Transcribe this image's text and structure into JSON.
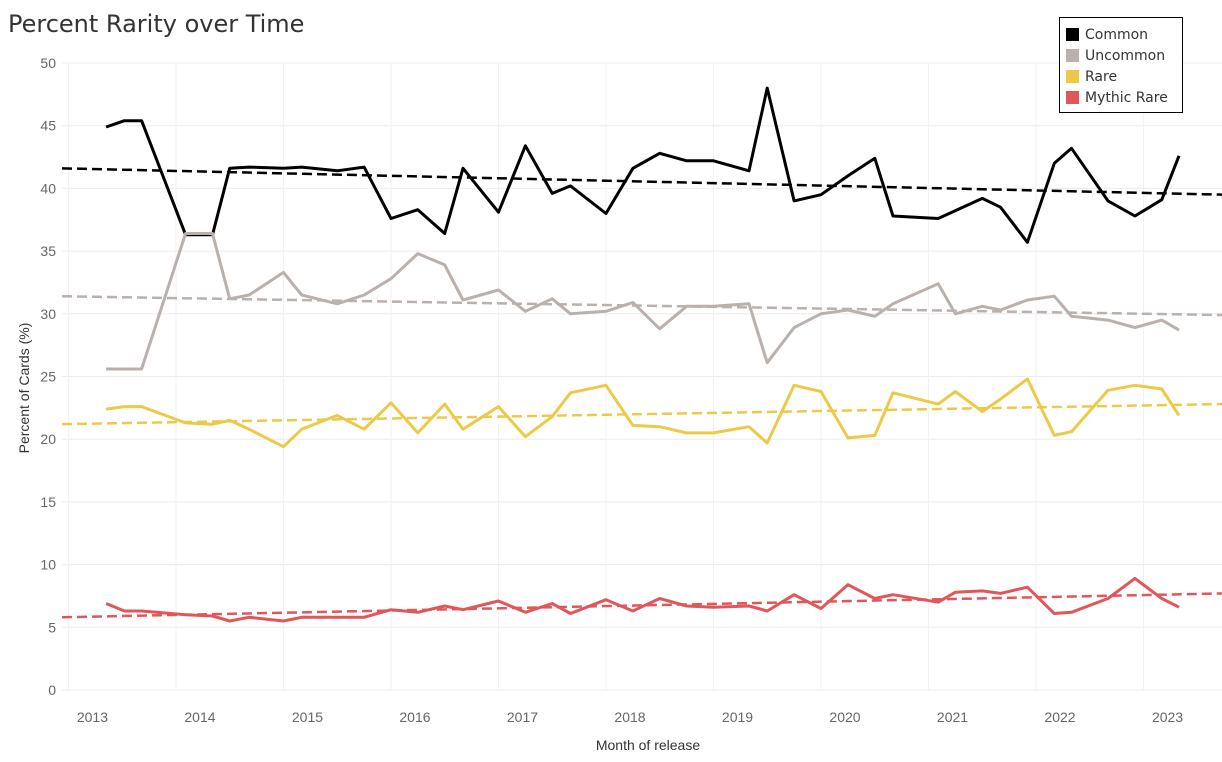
{
  "chart_data": {
    "type": "line",
    "title": "Percent Rarity over Time",
    "xlabel": "Month of release",
    "ylabel": "Percent of Cards (%)",
    "ylim": [
      0,
      50
    ],
    "yticks": [
      0,
      5,
      10,
      15,
      20,
      25,
      30,
      35,
      40,
      45,
      50
    ],
    "xticks": [
      "2013",
      "2014",
      "2015",
      "2016",
      "2017",
      "2018",
      "2019",
      "2020",
      "2021",
      "2022",
      "2023"
    ],
    "xlim": [
      2012.94,
      2023.73
    ],
    "grid": true,
    "legend_position": "top-right",
    "series": [
      {
        "name": "Common",
        "color": "#000000",
        "x": [
          2013.35,
          2013.52,
          2013.68,
          2014.09,
          2014.34,
          2014.5,
          2014.68,
          2015.0,
          2015.17,
          2015.5,
          2015.75,
          2016.0,
          2016.25,
          2016.5,
          2016.67,
          2017.0,
          2017.25,
          2017.5,
          2017.67,
          2018.0,
          2018.25,
          2018.5,
          2018.75,
          2019.0,
          2019.33,
          2019.5,
          2019.75,
          2020.0,
          2020.25,
          2020.5,
          2020.67,
          2021.09,
          2021.5,
          2021.67,
          2021.92,
          2022.17,
          2022.33,
          2022.67,
          2022.92,
          2023.17,
          2023.33
        ],
        "values": [
          44.9,
          45.4,
          45.4,
          36.3,
          36.3,
          41.6,
          41.7,
          41.6,
          41.7,
          41.4,
          41.7,
          37.6,
          38.3,
          36.4,
          41.6,
          38.1,
          43.4,
          39.6,
          40.2,
          38.0,
          41.6,
          42.8,
          42.2,
          42.2,
          41.4,
          48.0,
          39.0,
          39.5,
          41.0,
          42.4,
          37.8,
          37.6,
          39.2,
          38.5,
          35.7,
          42.0,
          43.2,
          39.0,
          37.8,
          39.1,
          42.6
        ],
        "trend": [
          41.6,
          39.5
        ]
      },
      {
        "name": "Uncommon",
        "color": "#bab0ac",
        "x": [
          2013.35,
          2013.52,
          2013.68,
          2014.09,
          2014.34,
          2014.5,
          2014.68,
          2015.0,
          2015.17,
          2015.5,
          2015.75,
          2016.0,
          2016.25,
          2016.5,
          2016.67,
          2017.0,
          2017.25,
          2017.5,
          2017.67,
          2018.0,
          2018.25,
          2018.5,
          2018.75,
          2019.0,
          2019.33,
          2019.5,
          2019.75,
          2020.0,
          2020.25,
          2020.5,
          2020.67,
          2021.09,
          2021.25,
          2021.5,
          2021.67,
          2021.92,
          2022.17,
          2022.33,
          2022.67,
          2022.92,
          2023.17,
          2023.33
        ],
        "values": [
          25.6,
          25.6,
          25.6,
          36.4,
          36.4,
          31.2,
          31.5,
          33.3,
          31.5,
          30.8,
          31.5,
          32.8,
          34.8,
          33.9,
          31.1,
          31.9,
          30.2,
          31.2,
          30.0,
          30.2,
          30.9,
          28.8,
          30.6,
          30.6,
          30.8,
          26.1,
          28.9,
          30.0,
          30.3,
          29.8,
          30.8,
          32.4,
          30.0,
          30.6,
          30.3,
          31.1,
          31.4,
          29.8,
          29.5,
          28.9,
          29.5,
          28.7
        ],
        "trend": [
          31.4,
          29.9
        ]
      },
      {
        "name": "Rare",
        "color": "#edc948",
        "x": [
          2013.35,
          2013.52,
          2013.68,
          2014.09,
          2014.34,
          2014.5,
          2014.68,
          2015.0,
          2015.17,
          2015.5,
          2015.75,
          2016.0,
          2016.25,
          2016.5,
          2016.67,
          2017.0,
          2017.25,
          2017.5,
          2017.67,
          2018.0,
          2018.25,
          2018.5,
          2018.75,
          2019.0,
          2019.33,
          2019.5,
          2019.75,
          2020.0,
          2020.25,
          2020.5,
          2020.67,
          2021.09,
          2021.25,
          2021.5,
          2021.67,
          2021.92,
          2022.17,
          2022.33,
          2022.67,
          2022.92,
          2023.17,
          2023.33
        ],
        "values": [
          22.4,
          22.6,
          22.6,
          21.3,
          21.2,
          21.5,
          20.8,
          19.4,
          20.8,
          21.9,
          20.8,
          22.9,
          20.5,
          22.8,
          20.8,
          22.6,
          20.2,
          21.8,
          23.7,
          24.3,
          21.1,
          21.0,
          20.5,
          20.5,
          21.0,
          19.7,
          24.3,
          23.8,
          20.1,
          20.3,
          23.7,
          22.8,
          23.8,
          22.2,
          23.2,
          24.8,
          20.3,
          20.6,
          23.9,
          24.3,
          24.0,
          21.9
        ],
        "trend": [
          21.2,
          22.8
        ]
      },
      {
        "name": "Mythic Rare",
        "color": "#e15759",
        "x": [
          2013.35,
          2013.52,
          2013.68,
          2014.09,
          2014.34,
          2014.5,
          2014.68,
          2015.0,
          2015.17,
          2015.5,
          2015.75,
          2016.0,
          2016.25,
          2016.5,
          2016.67,
          2017.0,
          2017.25,
          2017.5,
          2017.67,
          2018.0,
          2018.25,
          2018.5,
          2018.75,
          2019.0,
          2019.33,
          2019.5,
          2019.75,
          2020.0,
          2020.25,
          2020.5,
          2020.67,
          2021.09,
          2021.25,
          2021.5,
          2021.67,
          2021.92,
          2022.17,
          2022.33,
          2022.67,
          2022.92,
          2023.17,
          2023.33
        ],
        "values": [
          6.9,
          6.3,
          6.3,
          6.0,
          5.9,
          5.5,
          5.8,
          5.5,
          5.8,
          5.8,
          5.8,
          6.4,
          6.2,
          6.7,
          6.4,
          7.1,
          6.2,
          6.9,
          6.1,
          7.2,
          6.3,
          7.3,
          6.7,
          6.6,
          6.7,
          6.3,
          7.6,
          6.5,
          8.4,
          7.3,
          7.6,
          7.0,
          7.8,
          7.9,
          7.7,
          8.2,
          6.1,
          6.2,
          7.3,
          8.9,
          7.3,
          6.6
        ],
        "trend": [
          5.8,
          7.7
        ]
      }
    ]
  }
}
